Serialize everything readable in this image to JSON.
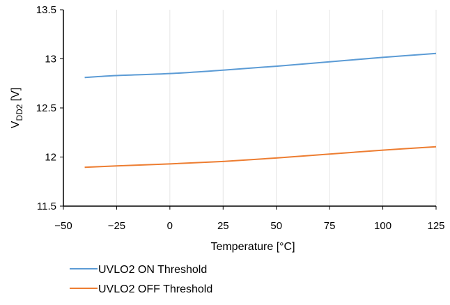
{
  "chart_data": {
    "type": "line",
    "title": "",
    "xlabel": "Temperature [°C]",
    "ylabel": {
      "main": "V",
      "sub": "DD2",
      "unit": " [V]"
    },
    "xlim": [
      -50,
      125
    ],
    "ylim": [
      11.5,
      13.5
    ],
    "x_ticks": [
      -50,
      -25,
      0,
      25,
      50,
      75,
      100,
      125
    ],
    "x_tick_labels": [
      "−50",
      "−25",
      "0",
      "25",
      "50",
      "75",
      "100",
      "125"
    ],
    "y_ticks": [
      11.5,
      12,
      12.5,
      13,
      13.5
    ],
    "y_tick_labels": [
      "11.5",
      "12",
      "12.5",
      "13",
      "13.5"
    ],
    "grid": {
      "vertical": true,
      "horizontal": false
    },
    "legend_position": "bottom-left",
    "series": [
      {
        "name": "UVLO2 ON Threshold",
        "color": "#5B9BD5",
        "x": [
          -40,
          -25,
          0,
          25,
          50,
          75,
          100,
          125
        ],
        "y": [
          12.81,
          12.83,
          12.85,
          12.885,
          12.925,
          12.97,
          13.015,
          13.055
        ]
      },
      {
        "name": "UVLO2 OFF Threshold",
        "color": "#ED7D31",
        "x": [
          -40,
          -25,
          0,
          25,
          50,
          75,
          100,
          125
        ],
        "y": [
          11.895,
          11.91,
          11.93,
          11.955,
          11.99,
          12.03,
          12.07,
          12.105
        ]
      }
    ]
  }
}
